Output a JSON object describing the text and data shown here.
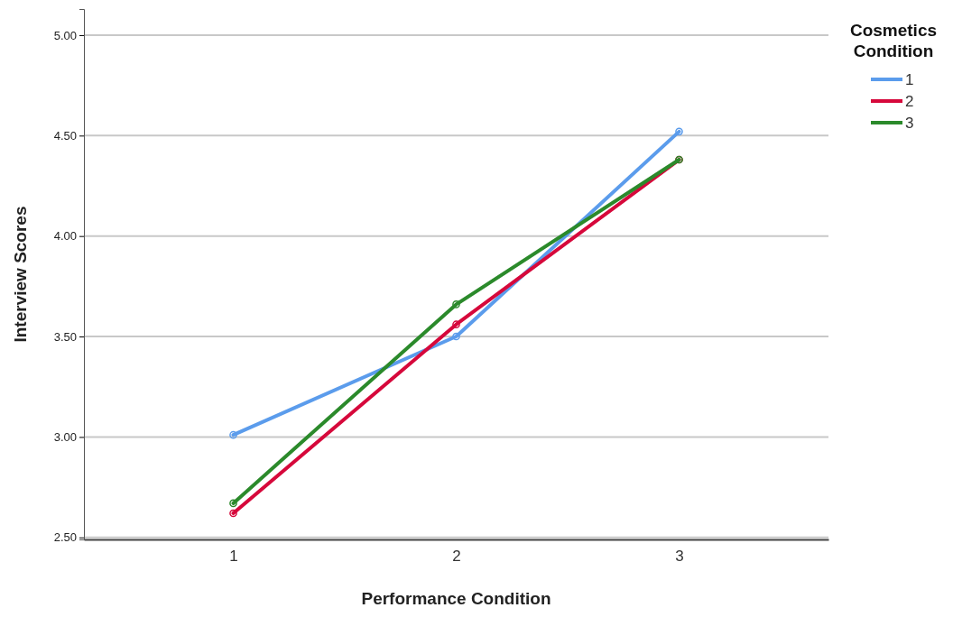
{
  "chart_data": {
    "type": "line",
    "xlabel": "Performance Condition",
    "ylabel": "Interview Scores",
    "legend_title": "Cosmetics Condition",
    "categories": [
      "1",
      "2",
      "3"
    ],
    "series": [
      {
        "name": "1",
        "color": "#5b9cec",
        "values": [
          3.01,
          3.5,
          4.52
        ]
      },
      {
        "name": "2",
        "color": "#d6083b",
        "values": [
          2.62,
          3.56,
          4.38
        ]
      },
      {
        "name": "3",
        "color": "#2b8a2b",
        "values": [
          2.67,
          3.66,
          4.38
        ]
      }
    ],
    "ylim": [
      2.49,
      5.13
    ],
    "yticks": [
      {
        "value": 2.5,
        "label": "2.50"
      },
      {
        "value": 3,
        "label": "3.00"
      },
      {
        "value": 3.5,
        "label": "3.50"
      },
      {
        "value": 4,
        "label": "4.00"
      },
      {
        "value": 4.5,
        "label": "4.50"
      },
      {
        "value": 5,
        "label": "5.00"
      }
    ],
    "grid": "y",
    "legend": "top right",
    "marker": "circle",
    "line_style": "solid"
  }
}
